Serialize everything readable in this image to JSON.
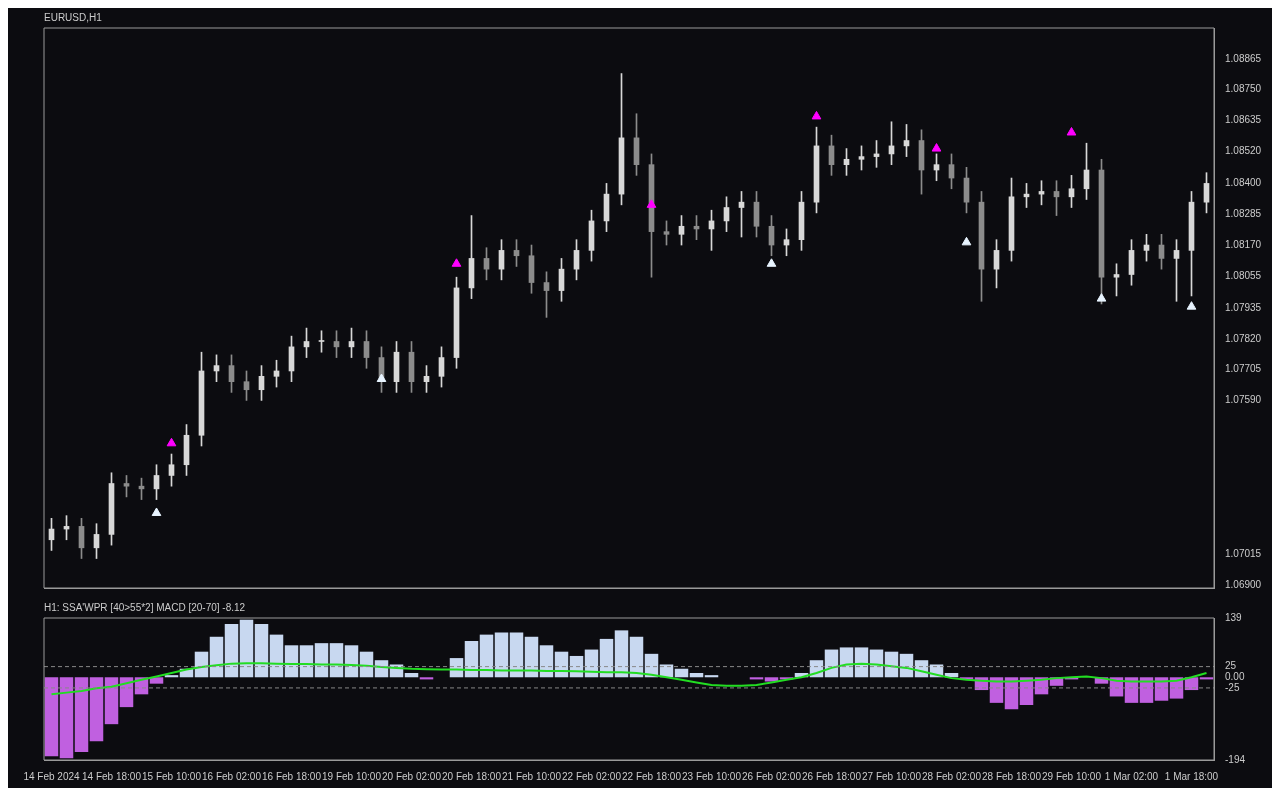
{
  "chart_data": [
    {
      "type": "candlestick",
      "title": "EURUSD,H1",
      "tick_labels": "y",
      "grid": false,
      "legend": false,
      "colors": [
        "#d8d8d8",
        "#d8d8d8",
        "#8c8c8c",
        "#d8d8d8",
        "#d8d8d8",
        "#8c8c8c",
        "#8c8c8c",
        "#d8d8d8",
        "#d8d8d8",
        "#d8d8d8",
        "#d8d8d8",
        "#d8d8d8",
        "#8c8c8c",
        "#8c8c8c",
        "#d8d8d8",
        "#d8d8d8",
        "#d8d8d8",
        "#d8d8d8",
        "#d8d8d8",
        "#8c8c8c",
        "#d8d8d8",
        "#8c8c8c",
        "#8c8c8c",
        "#d8d8d8",
        "#8c8c8c",
        "#d8d8d8",
        "#d8d8d8",
        "#d8d8d8",
        "#d8d8d8",
        "#8c8c8c",
        "#d8d8d8",
        "#8c8c8c",
        "#8c8c8c",
        "#8c8c8c",
        "#d8d8d8",
        "#d8d8d8",
        "#d8d8d8",
        "#d8d8d8",
        "#d8d8d8",
        "#8c8c8c",
        "#8c8c8c",
        "#8c8c8c",
        "#d8d8d8",
        "#8c8c8c",
        "#d8d8d8",
        "#d8d8d8",
        "#d8d8d8",
        "#8c8c8c",
        "#8c8c8c",
        "#d8d8d8",
        "#d8d8d8",
        "#d8d8d8",
        "#8c8c8c",
        "#d8d8d8",
        "#d8d8d8",
        "#d8d8d8",
        "#d8d8d8",
        "#d8d8d8",
        "#8c8c8c",
        "#d8d8d8",
        "#8c8c8c",
        "#8c8c8c",
        "#8c8c8c",
        "#d8d8d8",
        "#d8d8d8",
        "#d8d8d8",
        "#d8d8d8",
        "#8c8c8c",
        "#d8d8d8",
        "#d8d8d8",
        "#8c8c8c",
        "#d8d8d8",
        "#d8d8d8",
        "#d8d8d8",
        "#8c8c8c",
        "#d8d8d8",
        "#d8d8d8",
        "#d8d8d8"
      ],
      "categories": [
        null,
        null,
        null,
        null,
        null,
        null,
        null,
        null,
        null,
        null,
        null,
        null,
        null,
        null,
        null,
        null,
        null,
        null,
        null,
        null,
        null,
        null,
        null,
        null,
        null,
        null,
        null,
        null,
        null,
        null,
        null,
        null,
        null,
        null,
        null,
        null,
        null,
        null,
        null,
        null,
        null,
        null,
        null,
        null,
        null,
        null,
        null,
        null,
        null,
        null,
        null,
        null,
        null,
        null,
        null,
        null,
        null,
        null,
        null,
        null,
        null,
        null,
        null,
        null,
        null,
        null,
        null,
        null,
        null,
        null,
        null,
        null,
        null,
        null,
        null,
        null,
        null,
        null
      ],
      "ohlc": [
        [
          1.0707,
          1.0715,
          1.0703,
          1.0711
        ],
        [
          1.0711,
          1.0716,
          1.0707,
          1.0712
        ],
        [
          1.0712,
          1.0715,
          1.07,
          1.0704
        ],
        [
          1.0704,
          1.0713,
          1.07,
          1.0709
        ],
        [
          1.0709,
          1.0732,
          1.0705,
          1.0728
        ],
        [
          1.0728,
          1.0731,
          1.0723,
          1.0727
        ],
        [
          1.0727,
          1.073,
          1.0722,
          1.0726
        ],
        [
          1.0726,
          1.0735,
          1.0722,
          1.0731
        ],
        [
          1.0731,
          1.0739,
          1.0727,
          1.0735
        ],
        [
          1.0735,
          1.075,
          1.0731,
          1.0746
        ],
        [
          1.0746,
          1.0777,
          1.0742,
          1.077
        ],
        [
          1.077,
          1.0776,
          1.0766,
          1.0772
        ],
        [
          1.0772,
          1.0776,
          1.0762,
          1.0766
        ],
        [
          1.0766,
          1.077,
          1.0759,
          1.0763
        ],
        [
          1.0763,
          1.0772,
          1.0759,
          1.0768
        ],
        [
          1.0768,
          1.0774,
          1.0764,
          1.077
        ],
        [
          1.077,
          1.0783,
          1.0766,
          1.0779
        ],
        [
          1.0779,
          1.0786,
          1.0775,
          1.0781
        ],
        [
          1.0781,
          1.0785,
          1.0777,
          1.0781
        ],
        [
          1.0781,
          1.0785,
          1.0775,
          1.0779
        ],
        [
          1.0779,
          1.0786,
          1.0775,
          1.0781
        ],
        [
          1.0781,
          1.0785,
          1.0771,
          1.0775
        ],
        [
          1.0775,
          1.0779,
          1.0762,
          1.0766
        ],
        [
          1.0766,
          1.0781,
          1.0762,
          1.0777
        ],
        [
          1.0777,
          1.0781,
          1.0762,
          1.0766
        ],
        [
          1.0766,
          1.0772,
          1.0762,
          1.0768
        ],
        [
          1.0768,
          1.0779,
          1.0764,
          1.0775
        ],
        [
          1.0775,
          1.0805,
          1.0771,
          1.0801
        ],
        [
          1.0801,
          1.0828,
          1.0797,
          1.0812
        ],
        [
          1.0812,
          1.0816,
          1.0804,
          1.0808
        ],
        [
          1.0808,
          1.0819,
          1.0804,
          1.0815
        ],
        [
          1.0815,
          1.0819,
          1.0809,
          1.0813
        ],
        [
          1.0813,
          1.0817,
          1.0799,
          1.0803
        ],
        [
          1.0803,
          1.0807,
          1.079,
          1.08
        ],
        [
          1.08,
          1.0812,
          1.0796,
          1.0808
        ],
        [
          1.0808,
          1.0819,
          1.0804,
          1.0815
        ],
        [
          1.0815,
          1.083,
          1.0811,
          1.0826
        ],
        [
          1.0826,
          1.084,
          1.0822,
          1.0836
        ],
        [
          1.0836,
          1.0881,
          1.0832,
          1.0857
        ],
        [
          1.0857,
          1.0866,
          1.0843,
          1.0847
        ],
        [
          1.0847,
          1.0851,
          1.0805,
          1.0822
        ],
        [
          1.0822,
          1.0826,
          1.0817,
          1.0821
        ],
        [
          1.0821,
          1.0828,
          1.0817,
          1.0824
        ],
        [
          1.0824,
          1.0828,
          1.0819,
          1.0823
        ],
        [
          1.0823,
          1.083,
          1.0815,
          1.0826
        ],
        [
          1.0826,
          1.0835,
          1.0822,
          1.0831
        ],
        [
          1.0831,
          1.0837,
          1.082,
          1.0833
        ],
        [
          1.0833,
          1.0837,
          1.082,
          1.0824
        ],
        [
          1.0824,
          1.0828,
          1.0813,
          1.0817
        ],
        [
          1.0817,
          1.0823,
          1.0813,
          1.0819
        ],
        [
          1.0819,
          1.0837,
          1.0815,
          1.0833
        ],
        [
          1.0833,
          1.0861,
          1.0829,
          1.0854
        ],
        [
          1.0854,
          1.0858,
          1.0843,
          1.0847
        ],
        [
          1.0847,
          1.0853,
          1.0843,
          1.0849
        ],
        [
          1.0849,
          1.0854,
          1.0845,
          1.085
        ],
        [
          1.085,
          1.0856,
          1.0846,
          1.0851
        ],
        [
          1.0851,
          1.0863,
          1.0847,
          1.0854
        ],
        [
          1.0854,
          1.0862,
          1.085,
          1.0856
        ],
        [
          1.0856,
          1.086,
          1.0836,
          1.0845
        ],
        [
          1.0845,
          1.0851,
          1.0841,
          1.0847
        ],
        [
          1.0847,
          1.0851,
          1.0838,
          1.0842
        ],
        [
          1.0842,
          1.0846,
          1.0829,
          1.0833
        ],
        [
          1.0833,
          1.0837,
          1.0796,
          1.0808
        ],
        [
          1.0808,
          1.0819,
          1.0801,
          1.0815
        ],
        [
          1.0815,
          1.0842,
          1.0811,
          1.0835
        ],
        [
          1.0835,
          1.084,
          1.0831,
          1.0836
        ],
        [
          1.0836,
          1.0841,
          1.0832,
          1.0837
        ],
        [
          1.0837,
          1.0841,
          1.0828,
          1.0835
        ],
        [
          1.0835,
          1.0843,
          1.0831,
          1.0838
        ],
        [
          1.0838,
          1.0855,
          1.0834,
          1.0845
        ],
        [
          1.0845,
          1.0849,
          1.0795,
          1.0805
        ],
        [
          1.0805,
          1.081,
          1.0798,
          1.0806
        ],
        [
          1.0806,
          1.0819,
          1.0802,
          1.0815
        ],
        [
          1.0815,
          1.0821,
          1.0811,
          1.0817
        ],
        [
          1.0817,
          1.0821,
          1.0808,
          1.0812
        ],
        [
          1.0812,
          1.0819,
          1.0796,
          1.0815
        ],
        [
          1.0815,
          1.0837,
          1.0798,
          1.0833
        ],
        [
          1.0833,
          1.0844,
          1.0829,
          1.084
        ]
      ],
      "series": [
        {
          "type": "scatter",
          "color": "#ff00ff",
          "marker": "triangle",
          "values": [
            null,
            null,
            null,
            null,
            null,
            null,
            null,
            null,
            1.0743,
            null,
            null,
            null,
            null,
            null,
            null,
            null,
            null,
            null,
            null,
            null,
            null,
            null,
            null,
            null,
            null,
            null,
            null,
            1.081,
            null,
            null,
            null,
            null,
            null,
            null,
            null,
            null,
            null,
            null,
            null,
            null,
            1.0832,
            null,
            null,
            null,
            null,
            null,
            null,
            null,
            null,
            null,
            null,
            1.0865,
            null,
            null,
            null,
            null,
            null,
            null,
            null,
            1.0853,
            null,
            null,
            null,
            null,
            null,
            null,
            null,
            null,
            1.0859,
            null,
            null,
            null,
            null,
            null,
            null,
            null,
            null,
            null
          ]
        },
        {
          "type": "scatter",
          "color": "#e8f4ff",
          "marker": "triangle",
          "values": [
            null,
            null,
            null,
            null,
            null,
            null,
            null,
            1.0717,
            null,
            null,
            null,
            null,
            null,
            null,
            null,
            null,
            null,
            null,
            null,
            null,
            null,
            null,
            1.0767,
            null,
            null,
            null,
            null,
            null,
            null,
            null,
            null,
            null,
            null,
            null,
            null,
            null,
            null,
            null,
            null,
            null,
            null,
            null,
            null,
            null,
            null,
            null,
            null,
            null,
            1.081,
            null,
            null,
            null,
            null,
            null,
            null,
            null,
            null,
            null,
            null,
            null,
            null,
            1.0818,
            null,
            null,
            null,
            null,
            null,
            null,
            null,
            null,
            1.0797,
            null,
            null,
            null,
            null,
            null,
            1.0794,
            null
          ]
        }
      ],
      "ylim": [
        1.0689,
        1.0898
      ],
      "yticks": [
        {
          "value": 1.069,
          "label": "1.06900"
        },
        {
          "value": 1.07015,
          "label": "1.07015"
        },
        {
          "value": 1.0759,
          "label": "1.07590"
        },
        {
          "value": 1.07705,
          "label": "1.07705"
        },
        {
          "value": 1.0782,
          "label": "1.07820"
        },
        {
          "value": 1.07935,
          "label": "1.07935"
        },
        {
          "value": 1.08055,
          "label": "1.08055"
        },
        {
          "value": 1.0817,
          "label": "1.08170"
        },
        {
          "value": 1.08285,
          "label": "1.08285"
        },
        {
          "value": 1.084,
          "label": "1.08400"
        },
        {
          "value": 1.0852,
          "label": "1.08520"
        },
        {
          "value": 1.08635,
          "label": "1.08635"
        },
        {
          "value": 1.0875,
          "label": "1.08750"
        },
        {
          "value": 1.08865,
          "label": "1.08865"
        }
      ]
    },
    {
      "type": "bar",
      "title": "H1: SSA'WPR [40>55*2] MACD [20-70] -8.12",
      "grid": false,
      "legend": false,
      "categories": [
        "14 Feb 2024",
        null,
        null,
        null,
        "14 Feb 18:00",
        null,
        null,
        null,
        "15 Feb 10:00",
        null,
        null,
        null,
        "16 Feb 02:00",
        null,
        null,
        null,
        "16 Feb 18:00",
        null,
        null,
        null,
        "19 Feb 10:00",
        null,
        null,
        null,
        "20 Feb 02:00",
        null,
        null,
        null,
        "20 Feb 18:00",
        null,
        null,
        null,
        "21 Feb 10:00",
        null,
        null,
        null,
        "22 Feb 02:00",
        null,
        null,
        null,
        "22 Feb 18:00",
        null,
        null,
        null,
        "23 Feb 10:00",
        null,
        null,
        null,
        "26 Feb 02:00",
        null,
        null,
        null,
        "26 Feb 18:00",
        null,
        null,
        null,
        "27 Feb 10:00",
        null,
        null,
        null,
        "28 Feb 02:00",
        null,
        null,
        null,
        "28 Feb 18:00",
        null,
        null,
        null,
        "29 Feb 10:00",
        null,
        null,
        null,
        "1 Mar 02:00",
        null,
        null,
        null,
        "1 Mar 18:00",
        null
      ],
      "series": [
        {
          "type": "bar",
          "values": [
            -185,
            -190,
            -175,
            -150,
            -110,
            -70,
            -40,
            -15,
            5,
            20,
            60,
            95,
            125,
            135,
            125,
            100,
            75,
            75,
            80,
            80,
            75,
            60,
            40,
            30,
            10,
            -5,
            0,
            45,
            85,
            100,
            105,
            105,
            95,
            75,
            60,
            50,
            65,
            90,
            110,
            95,
            55,
            30,
            20,
            10,
            5,
            0,
            0,
            -5,
            -10,
            -5,
            10,
            40,
            65,
            70,
            70,
            65,
            60,
            55,
            40,
            30,
            10,
            -5,
            -30,
            -60,
            -75,
            -65,
            -40,
            -20,
            -5,
            0,
            -15,
            -45,
            -60,
            -60,
            -55,
            -50,
            -30,
            -5
          ],
          "colors": [
            "#c060e0",
            "#c060e0",
            "#c060e0",
            "#c060e0",
            "#c060e0",
            "#c060e0",
            "#c060e0",
            "#c060e0",
            "#c8d8f0",
            "#c8d8f0",
            "#c8d8f0",
            "#c8d8f0",
            "#c8d8f0",
            "#c8d8f0",
            "#c8d8f0",
            "#c8d8f0",
            "#c8d8f0",
            "#c8d8f0",
            "#c8d8f0",
            "#c8d8f0",
            "#c8d8f0",
            "#c8d8f0",
            "#c8d8f0",
            "#c8d8f0",
            "#c8d8f0",
            "#c060e0",
            "#c8d8f0",
            "#c8d8f0",
            "#c8d8f0",
            "#c8d8f0",
            "#c8d8f0",
            "#c8d8f0",
            "#c8d8f0",
            "#c8d8f0",
            "#c8d8f0",
            "#c8d8f0",
            "#c8d8f0",
            "#c8d8f0",
            "#c8d8f0",
            "#c8d8f0",
            "#c8d8f0",
            "#c8d8f0",
            "#c8d8f0",
            "#c8d8f0",
            "#c8d8f0",
            "#c8d8f0",
            "#c8d8f0",
            "#c060e0",
            "#c060e0",
            "#c060e0",
            "#c8d8f0",
            "#c8d8f0",
            "#c8d8f0",
            "#c8d8f0",
            "#c8d8f0",
            "#c8d8f0",
            "#c8d8f0",
            "#c8d8f0",
            "#c8d8f0",
            "#c8d8f0",
            "#c8d8f0",
            "#c060e0",
            "#c060e0",
            "#c060e0",
            "#c060e0",
            "#c060e0",
            "#c060e0",
            "#c060e0",
            "#c060e0",
            "#c8d8f0",
            "#c060e0",
            "#c060e0",
            "#c060e0",
            "#c060e0",
            "#c060e0",
            "#c060e0",
            "#c060e0",
            "#c060e0"
          ]
        },
        {
          "type": "line",
          "color": "#22dd22",
          "values": [
            -40,
            -36,
            -32,
            -26,
            -22,
            -14,
            -6,
            2,
            10,
            18,
            24,
            28,
            32,
            33,
            33,
            32,
            31,
            31,
            30,
            30,
            29,
            27,
            24,
            22,
            20,
            19,
            18,
            18,
            17,
            17,
            16,
            16,
            16,
            15,
            15,
            14,
            13,
            12,
            12,
            10,
            6,
            0,
            -6,
            -12,
            -18,
            -20,
            -20,
            -18,
            -12,
            -6,
            0,
            10,
            22,
            30,
            32,
            30,
            26,
            22,
            14,
            6,
            -2,
            -6,
            -8,
            -10,
            -10,
            -8,
            -6,
            -2,
            0,
            2,
            -2,
            -8,
            -10,
            -10,
            -10,
            -8,
            0,
            10
          ]
        }
      ],
      "ylim": [
        -194,
        139
      ],
      "yticks": [
        -194,
        -25,
        {
          "value": 0,
          "label": "0.00"
        },
        25,
        139
      ],
      "ref_lines": [
        {
          "axis": "y",
          "value": 25,
          "color": "#888888",
          "line_style": "dashed"
        },
        {
          "axis": "y",
          "value": -25,
          "color": "#888888",
          "line_style": "dashed"
        }
      ]
    }
  ]
}
